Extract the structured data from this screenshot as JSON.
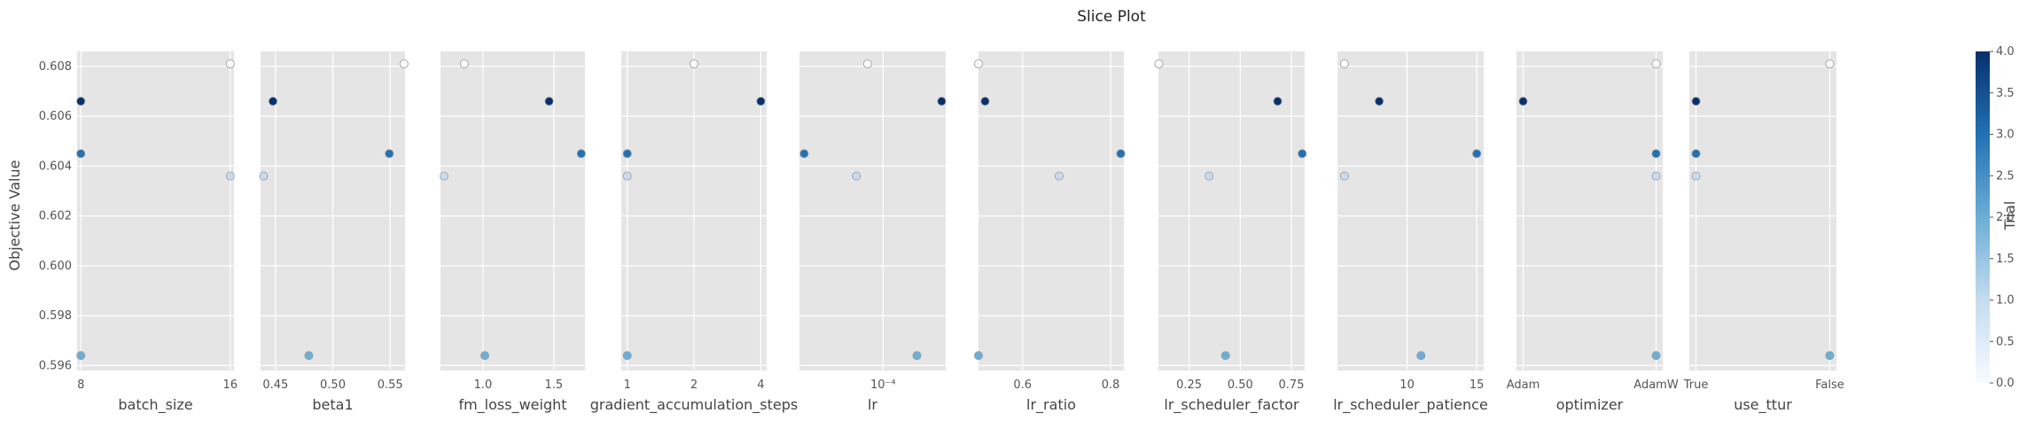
{
  "chart_data": {
    "type": "scatter",
    "title": "Slice Plot",
    "ylabel": "Objective Value",
    "ylim": [
      0.5958,
      0.6086
    ],
    "yticks": [
      0.596,
      0.598,
      0.6,
      0.602,
      0.604,
      0.606,
      0.608
    ],
    "ytick_labels": [
      "0.596",
      "0.598",
      "0.600",
      "0.602",
      "0.604",
      "0.606",
      "0.608"
    ],
    "grid": true,
    "trials": [
      {
        "trial": 0,
        "objective": 0.6081
      },
      {
        "trial": 1,
        "objective": 0.6036
      },
      {
        "trial": 2,
        "objective": 0.5964
      },
      {
        "trial": 3,
        "objective": 0.6045
      },
      {
        "trial": 4,
        "objective": 0.6066
      }
    ],
    "colorbar": {
      "label": "Trial",
      "min": 0.0,
      "max": 4.0,
      "ticks": [
        "0.0",
        "0.5",
        "1.0",
        "1.5",
        "2.0",
        "2.5",
        "3.0",
        "3.5",
        "4.0"
      ],
      "colors": [
        "#f7fbff",
        "#c6dbef",
        "#6baed6",
        "#2171b5",
        "#08306b"
      ]
    },
    "panels": [
      {
        "xlabel": "batch_size",
        "scale": "linear",
        "xlim": [
          7.8,
          16.2
        ],
        "ticks": [
          8,
          16
        ],
        "tick_labels": [
          "8",
          "16"
        ],
        "x": [
          16,
          16,
          8,
          8,
          8
        ]
      },
      {
        "xlabel": "beta1",
        "scale": "linear",
        "xlim": [
          0.437,
          0.563
        ],
        "ticks": [
          0.45,
          0.5,
          0.55
        ],
        "tick_labels": [
          "0.45",
          "0.50",
          "0.55"
        ],
        "x": [
          0.5621,
          0.4397,
          0.4791,
          0.5493,
          0.4478
        ]
      },
      {
        "xlabel": "fm_loss_weight",
        "scale": "linear",
        "xlim": [
          0.7,
          1.72
        ],
        "ticks": [
          1.0,
          1.5
        ],
        "tick_labels": [
          "1.0",
          "1.5"
        ],
        "x": [
          0.868,
          0.725,
          1.013,
          1.694,
          1.467
        ]
      },
      {
        "xlabel": "gradient_accumulation_steps",
        "scale": "log2",
        "xlim": [
          0.94,
          4.25
        ],
        "ticks": [
          1,
          2,
          4
        ],
        "tick_labels": [
          "1",
          "2",
          "4"
        ],
        "x": [
          2,
          1,
          1,
          1,
          4
        ]
      },
      {
        "xlabel": "lr",
        "scale": "log10",
        "xlim": [
          2.99e-05,
          0.000247
        ],
        "ticks": [
          0.0001
        ],
        "tick_labels": [
          "10⁻⁴"
        ],
        "x": [
          8e-05,
          6.8e-05,
          0.000163,
          3.2e-05,
          0.000233
        ]
      },
      {
        "xlabel": "lr_ratio",
        "scale": "linear",
        "xlim": [
          0.5,
          0.83
        ],
        "ticks": [
          0.6,
          0.8
        ],
        "tick_labels": [
          "0.6",
          "0.8"
        ],
        "x": [
          0.5,
          0.683,
          0.5,
          0.823,
          0.515
        ]
      },
      {
        "xlabel": "lr_scheduler_factor",
        "scale": "linear",
        "xlim": [
          0.1,
          0.815
        ],
        "ticks": [
          0.25,
          0.5,
          0.75
        ],
        "tick_labels": [
          "0.25",
          "0.50",
          "0.75"
        ],
        "x": [
          0.102,
          0.348,
          0.428,
          0.803,
          0.683
        ]
      },
      {
        "xlabel": "lr_scheduler_patience",
        "scale": "linear",
        "xlim": [
          5.0,
          15.5
        ],
        "ticks": [
          10,
          15
        ],
        "tick_labels": [
          "10",
          "15"
        ],
        "x": [
          5.5,
          5.5,
          11,
          15,
          8
        ]
      },
      {
        "xlabel": "optimizer",
        "scale": "category",
        "xlim": [
          -0.05,
          1.05
        ],
        "ticks": [
          0,
          1
        ],
        "tick_labels": [
          "Adam",
          "AdamW"
        ],
        "x": [
          1,
          1,
          1,
          1,
          0
        ]
      },
      {
        "xlabel": "use_ttur",
        "scale": "category",
        "xlim": [
          -0.05,
          1.05
        ],
        "ticks": [
          0,
          1
        ],
        "tick_labels": [
          "True",
          "False"
        ],
        "x": [
          1,
          0,
          1,
          0,
          0
        ]
      }
    ]
  }
}
